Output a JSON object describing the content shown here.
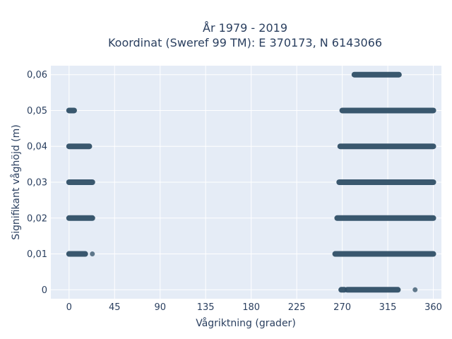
{
  "chart_data": {
    "type": "scatter",
    "title_line1": "År 1979 - 2019",
    "title_line2": "Koordinat (Sweref 99 TM): E 370173, N 6143066",
    "xlabel": "Vågriktning (grader)",
    "ylabel": "Signifikant våghöjd (m)",
    "xlim": [
      -18,
      368
    ],
    "ylim": [
      -0.0025,
      0.0625
    ],
    "xticks": [
      0,
      45,
      90,
      135,
      180,
      225,
      270,
      315,
      360
    ],
    "xtick_labels": [
      "0",
      "45",
      "90",
      "135",
      "180",
      "225",
      "270",
      "315",
      "360"
    ],
    "yticks": [
      0,
      0.01,
      0.02,
      0.03,
      0.04,
      0.05,
      0.06
    ],
    "ytick_labels": [
      "0",
      "0,01",
      "0,02",
      "0,03",
      "0,04",
      "0,05",
      "0,06"
    ],
    "grid": true,
    "marker_color": "#2f4f66",
    "background_color": "#e5ecf6",
    "bands": [
      {
        "y": 0.06,
        "segments": [
          [
            282,
            326
          ]
        ]
      },
      {
        "y": 0.05,
        "segments": [
          [
            0,
            5
          ],
          [
            270,
            360
          ]
        ]
      },
      {
        "y": 0.04,
        "segments": [
          [
            0,
            20
          ],
          [
            268,
            360
          ]
        ]
      },
      {
        "y": 0.03,
        "segments": [
          [
            0,
            23
          ],
          [
            267,
            360
          ]
        ]
      },
      {
        "y": 0.02,
        "segments": [
          [
            0,
            23
          ],
          [
            265,
            360
          ]
        ]
      },
      {
        "y": 0.01,
        "segments": [
          [
            0,
            16
          ],
          [
            263,
            360
          ]
        ]
      },
      {
        "y": 0.0,
        "segments": [
          [
            269,
            272
          ],
          [
            275,
            325
          ]
        ]
      }
    ],
    "isolated_points": [
      {
        "x": 23,
        "y": 0.01
      },
      {
        "x": 342,
        "y": 0.0
      }
    ]
  }
}
